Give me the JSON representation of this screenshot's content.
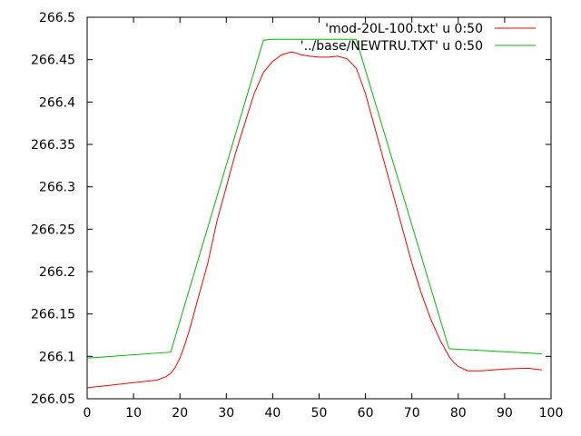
{
  "chart_data": {
    "type": "line",
    "title": "",
    "xlabel": "",
    "ylabel": "",
    "xlim": [
      0,
      100
    ],
    "ylim": [
      266.05,
      266.5
    ],
    "grid": false,
    "legend_position": "top-right",
    "x_ticks": [
      0,
      10,
      20,
      30,
      40,
      50,
      60,
      70,
      80,
      90,
      100
    ],
    "x_tick_labels": [
      "0",
      "10",
      "20",
      "30",
      "40",
      "50",
      "60",
      "70",
      "80",
      "90",
      "100"
    ],
    "y_ticks": [
      266.05,
      266.1,
      266.15,
      266.2,
      266.25,
      266.3,
      266.35,
      266.4,
      266.45,
      266.5
    ],
    "y_tick_labels": [
      "266.05",
      "266.1",
      "266.15",
      "266.2",
      "266.25",
      "266.3",
      "266.35",
      "266.4",
      "266.45",
      "266.5"
    ],
    "series": [
      {
        "name": "'mod-20L-100.txt' u 0:50",
        "color": "#ff0000",
        "x": [
          0,
          5,
          10,
          15,
          17,
          18,
          19,
          20,
          21,
          22,
          24,
          26,
          28,
          30,
          32,
          34,
          36,
          38,
          40,
          42,
          44,
          45,
          46,
          48,
          50,
          52,
          54,
          56,
          58,
          60,
          62,
          64,
          66,
          68,
          70,
          72,
          74,
          76,
          78,
          79,
          80,
          82,
          85,
          90,
          95,
          98
        ],
        "y": [
          266.063,
          266.066,
          266.069,
          266.072,
          266.076,
          266.08,
          266.087,
          266.098,
          266.113,
          266.13,
          266.17,
          266.21,
          266.26,
          266.3,
          266.34,
          266.375,
          266.41,
          266.435,
          266.448,
          266.456,
          266.459,
          266.458,
          266.456,
          266.454,
          266.453,
          266.453,
          266.454,
          266.451,
          266.44,
          266.41,
          266.37,
          266.33,
          266.29,
          266.25,
          266.21,
          266.175,
          266.145,
          266.12,
          266.1,
          266.093,
          266.088,
          266.083,
          266.083,
          266.085,
          266.086,
          266.084
        ]
      },
      {
        "name": "'../base/NEWTRU.TXT' u 0:50",
        "color": "#00bb00",
        "x": [
          0,
          18,
          38,
          40,
          58,
          78,
          98
        ],
        "y": [
          266.098,
          266.105,
          266.473,
          266.474,
          266.474,
          266.109,
          266.103
        ]
      }
    ]
  }
}
